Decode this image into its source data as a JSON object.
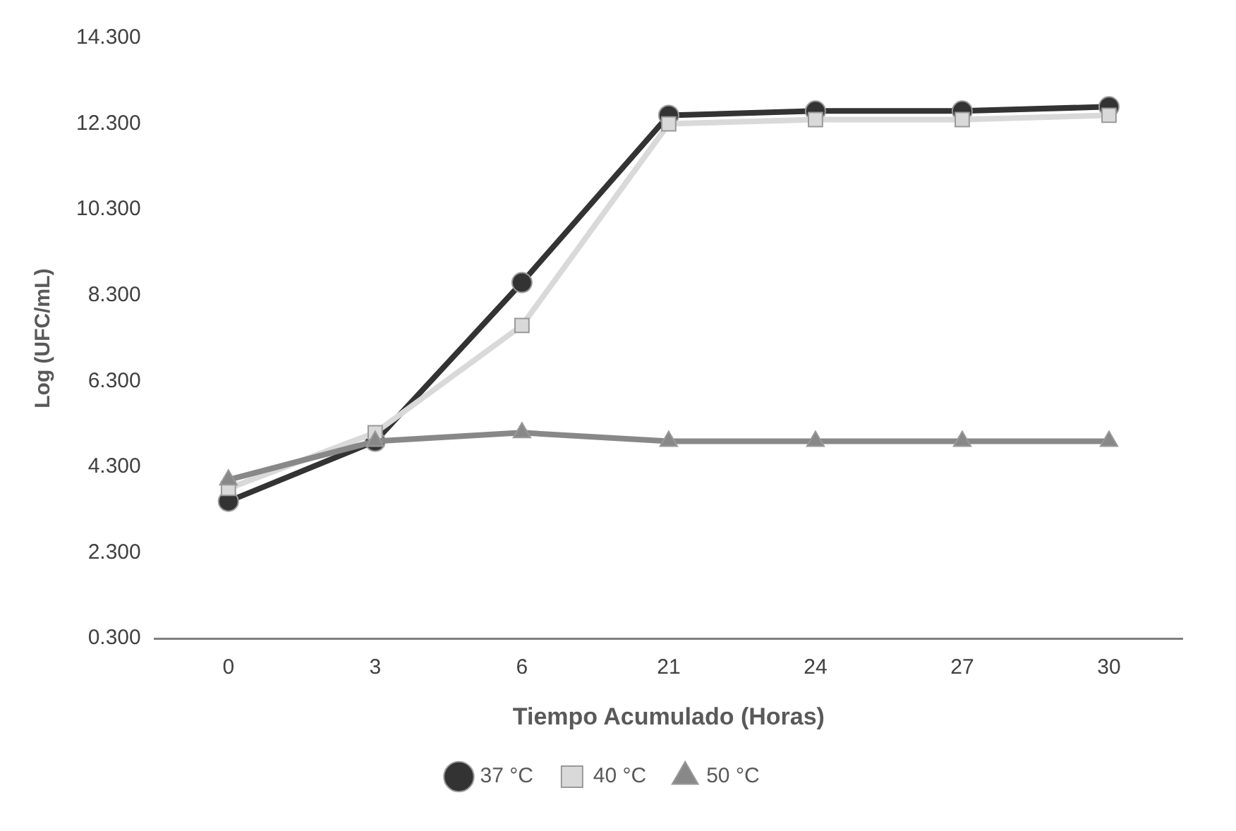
{
  "chart_data": {
    "type": "line",
    "xlabel": "Tiempo Acumulado (Horas)",
    "ylabel": "Log (UFC/mL)",
    "categories": [
      "0",
      "3",
      "6",
      "21",
      "24",
      "27",
      "30"
    ],
    "series": [
      {
        "name": "37 °C",
        "color": "#333333",
        "marker": "circle",
        "values": [
          3.5,
          4.9,
          8.6,
          12.5,
          12.6,
          12.6,
          12.7
        ]
      },
      {
        "name": "40 °C",
        "color": "#d9d9d9",
        "marker": "square",
        "values": [
          3.8,
          5.1,
          7.6,
          12.3,
          12.4,
          12.4,
          12.5
        ]
      },
      {
        "name": "50 °C",
        "color": "#888888",
        "marker": "triangle",
        "values": [
          4.0,
          4.9,
          5.1,
          4.9,
          4.9,
          4.9,
          4.9
        ]
      }
    ],
    "ylim": [
      0.3,
      14.3
    ],
    "yticks": [
      {
        "value": 0.3,
        "label": "0.300"
      },
      {
        "value": 2.3,
        "label": "2.300"
      },
      {
        "value": 4.3,
        "label": "4.300"
      },
      {
        "value": 6.3,
        "label": "6.300"
      },
      {
        "value": 8.3,
        "label": "8.300"
      },
      {
        "value": 10.3,
        "label": "10.300"
      },
      {
        "value": 12.3,
        "label": "12.300"
      },
      {
        "value": 14.3,
        "label": "14.300"
      }
    ],
    "grid": false,
    "legend": "bottom"
  }
}
